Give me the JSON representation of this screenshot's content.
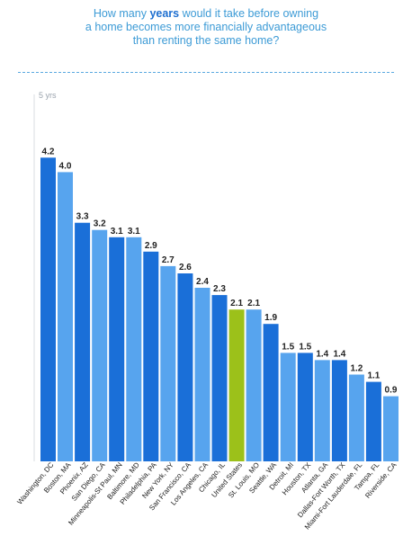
{
  "header": {
    "title_part1": "How many ",
    "title_highlight": "years",
    "title_part2": " would it take before owning",
    "title_line2": "a home becomes more financially advantageous",
    "title_line3": "than renting the same home?"
  },
  "colors": {
    "dark_blue": "#1a6fd8",
    "light_blue": "#57a4ee",
    "highlight_green": "#9cc11a",
    "axis_line": "#d9dde2",
    "label_text": "#222222",
    "axis_text": "#9aa3ad"
  },
  "chart_data": {
    "type": "bar",
    "title": "How many years would it take before owning a home becomes more financially advantageous than renting the same home?",
    "ylabel": "",
    "xlabel": "",
    "ylim": [
      0,
      5
    ],
    "y_tick_label": "5 yrs",
    "grid": false,
    "legend": "none",
    "categories": [
      "Washington, DC",
      "Boston, MA",
      "Phoenix, AZ",
      "San Diego, CA",
      "Minneapolis-St Paul, MN",
      "Baltimore, MD",
      "Philadelphia, PA",
      "New York, NY",
      "San Francisco, CA",
      "Los Angeles, CA",
      "Chicago, IL",
      "United States",
      "St. Louis, MO",
      "Seattle, WA",
      "Detroit, MI",
      "Houston, TX",
      "Atlanta, GA",
      "Dallas-Fort Worth, TX",
      "Miami-Fort Lauderdale, FL",
      "Tampa, FL",
      "Riverside, CA"
    ],
    "values": [
      4.2,
      4.0,
      3.3,
      3.2,
      3.1,
      3.1,
      2.9,
      2.7,
      2.6,
      2.4,
      2.3,
      2.1,
      2.1,
      1.9,
      1.5,
      1.5,
      1.4,
      1.4,
      1.2,
      1.1,
      0.9
    ],
    "value_labels": [
      "4.2",
      "4.0",
      "3.3",
      "3.2",
      "3.1",
      "3.1",
      "2.9",
      "2.7",
      "2.6",
      "2.4",
      "2.3",
      "2.1",
      "2.1",
      "1.9",
      "1.5",
      "1.5",
      "1.4",
      "1.4",
      "1.2",
      "1.1",
      "0.9"
    ],
    "bar_colors": [
      "dark",
      "light",
      "dark",
      "light",
      "dark",
      "light",
      "dark",
      "light",
      "dark",
      "light",
      "dark",
      "green",
      "light",
      "dark",
      "light",
      "dark",
      "light",
      "dark",
      "light",
      "dark",
      "light"
    ]
  }
}
